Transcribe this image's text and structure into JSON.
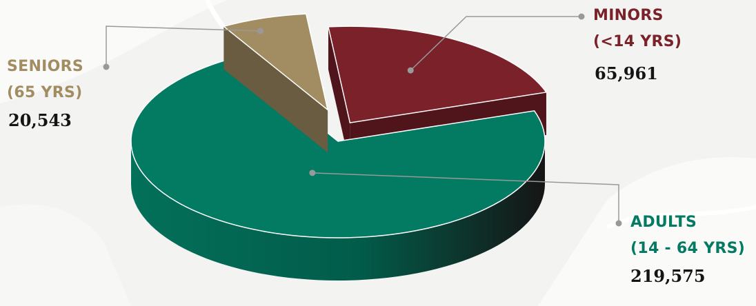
{
  "chart_data": {
    "type": "pie",
    "three_d": true,
    "exploded": true,
    "slices": [
      {
        "label_line1": "MINORS",
        "label_line2": "(<14 YRS)",
        "value": 65961,
        "value_text": "65,961",
        "color": "#7a2129"
      },
      {
        "label_line1": "ADULTS",
        "label_line2": "(14 - 64 YRS)",
        "value": 219575,
        "value_text": "219,575",
        "color": "#037a62"
      },
      {
        "label_line1": "SENIORS",
        "label_line2": "(65 YRS)",
        "value": 20543,
        "value_text": "20,543",
        "color": "#a28d62"
      }
    ],
    "leader_line_color": "#999999",
    "background_color": "#f3f3f2"
  }
}
